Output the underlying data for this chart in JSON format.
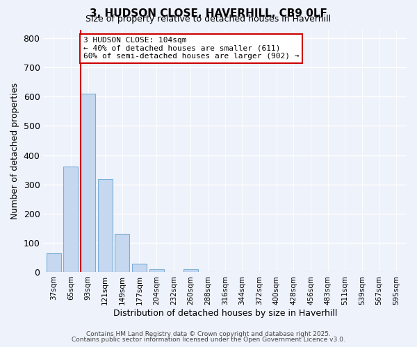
{
  "title": "3, HUDSON CLOSE, HAVERHILL, CB9 0LF",
  "subtitle": "Size of property relative to detached houses in Haverhill",
  "xlabel": "Distribution of detached houses by size in Haverhill",
  "ylabel": "Number of detached properties",
  "bar_labels": [
    "37sqm",
    "65sqm",
    "93sqm",
    "121sqm",
    "149sqm",
    "177sqm",
    "204sqm",
    "232sqm",
    "260sqm",
    "288sqm",
    "316sqm",
    "344sqm",
    "372sqm",
    "400sqm",
    "428sqm",
    "456sqm",
    "483sqm",
    "511sqm",
    "539sqm",
    "567sqm",
    "595sqm"
  ],
  "bar_values": [
    63,
    360,
    610,
    318,
    130,
    28,
    10,
    0,
    10,
    0,
    0,
    0,
    0,
    0,
    0,
    0,
    0,
    0,
    0,
    0,
    0
  ],
  "bar_color": "#c5d8f0",
  "bar_edge_color": "#7aaed6",
  "vline_color": "#cc0000",
  "ylim": [
    0,
    830
  ],
  "yticks": [
    0,
    100,
    200,
    300,
    400,
    500,
    600,
    700,
    800
  ],
  "annotation_line1": "3 HUDSON CLOSE: 104sqm",
  "annotation_line2": "← 40% of detached houses are smaller (611)",
  "annotation_line3": "60% of semi-detached houses are larger (902) →",
  "bg_color": "#eef2fb",
  "grid_color": "#ffffff",
  "footer_line1": "Contains HM Land Registry data © Crown copyright and database right 2025.",
  "footer_line2": "Contains public sector information licensed under the Open Government Licence v3.0."
}
